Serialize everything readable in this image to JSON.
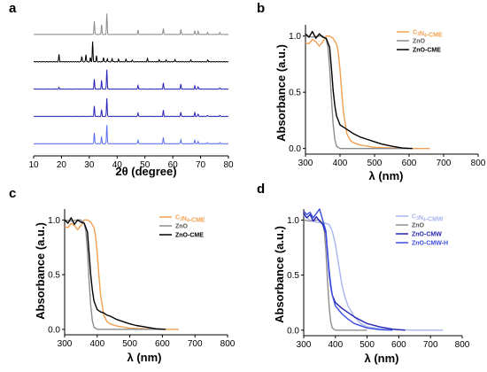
{
  "colors": {
    "orange": "#f0a050",
    "gray": "#8c8c8c",
    "black": "#000000",
    "blue_gray": "#8f8f8f",
    "blue_dark": "#2424b8",
    "blue_light": "#5a6ff0",
    "blue_pale": "#a8b4ec"
  },
  "chart_data": [
    {
      "id": "a",
      "type": "line",
      "panel_label": "a",
      "xlabel": "2θ (degree)",
      "ylabel": "",
      "xlim": [
        10,
        80
      ],
      "xticks": [
        10,
        20,
        30,
        40,
        50,
        60,
        70,
        80
      ],
      "offset_baselines": [
        2.0,
        1.55,
        1.1,
        0.65,
        0.2
      ],
      "series": [
        {
          "color": "#8c8c8c",
          "baseline": 2.0,
          "peaks": [
            [
              31.8,
              0.22
            ],
            [
              34.4,
              0.16
            ],
            [
              36.3,
              0.34
            ],
            [
              47.5,
              0.07
            ],
            [
              56.6,
              0.1
            ],
            [
              62.9,
              0.08
            ],
            [
              67.9,
              0.06
            ],
            [
              69.1,
              0.05
            ],
            [
              72.5,
              0.03
            ],
            [
              76.9,
              0.03
            ]
          ]
        },
        {
          "color": "#000000",
          "baseline": 1.55,
          "peaks": [
            [
              19.1,
              0.12
            ],
            [
              27.3,
              0.09
            ],
            [
              28.8,
              0.12
            ],
            [
              30.4,
              0.07
            ],
            [
              31.2,
              0.33
            ],
            [
              32.6,
              0.1
            ],
            [
              35.1,
              0.07
            ],
            [
              36.5,
              0.05
            ],
            [
              38.2,
              0.05
            ],
            [
              40.5,
              0.04
            ],
            [
              43.2,
              0.04
            ],
            [
              45.4,
              0.03
            ],
            [
              50.9,
              0.05
            ],
            [
              55.1,
              0.03
            ],
            [
              57.6,
              0.03
            ],
            [
              60.8,
              0.04
            ],
            [
              66.5,
              0.03
            ],
            [
              72.6,
              0.03
            ]
          ]
        },
        {
          "color": "#2424b8",
          "baseline": 1.1,
          "peaks": [
            [
              19.1,
              0.03
            ],
            [
              31.8,
              0.16
            ],
            [
              34.4,
              0.14
            ],
            [
              36.3,
              0.32
            ],
            [
              47.5,
              0.06
            ],
            [
              56.6,
              0.1
            ],
            [
              62.9,
              0.08
            ],
            [
              67.9,
              0.05
            ],
            [
              69.1,
              0.04
            ],
            [
              76.9,
              0.02
            ]
          ]
        },
        {
          "color": "#2424b8",
          "baseline": 0.65,
          "peaks": [
            [
              31.8,
              0.17
            ],
            [
              34.4,
              0.11
            ],
            [
              36.3,
              0.3
            ],
            [
              47.5,
              0.06
            ],
            [
              56.6,
              0.1
            ],
            [
              62.9,
              0.07
            ],
            [
              67.9,
              0.06
            ],
            [
              69.1,
              0.04
            ],
            [
              72.5,
              0.02
            ],
            [
              76.9,
              0.02
            ]
          ]
        },
        {
          "color": "#5a6ff0",
          "baseline": 0.2,
          "peaks": [
            [
              31.8,
              0.18
            ],
            [
              34.4,
              0.12
            ],
            [
              36.3,
              0.31
            ],
            [
              47.5,
              0.06
            ],
            [
              56.6,
              0.1
            ],
            [
              62.9,
              0.07
            ],
            [
              67.9,
              0.06
            ],
            [
              69.1,
              0.04
            ],
            [
              72.5,
              0.02
            ],
            [
              76.9,
              0.02
            ]
          ]
        }
      ]
    },
    {
      "id": "b",
      "type": "line",
      "panel_label": "b",
      "xlabel": "λ (nm)",
      "ylabel": "Absorbance (a.u.)",
      "xlim": [
        300,
        800
      ],
      "ylim": [
        -0.05,
        1.1
      ],
      "xticks": [
        300,
        400,
        500,
        600,
        700,
        800
      ],
      "yticks": [
        0.0,
        0.5,
        1.0
      ],
      "series": [
        {
          "name": "C3N4-CME",
          "name_main": "C",
          "name_sub1": "3",
          "name_mid": "N",
          "name_sub2": "4",
          "name_rest": "-CME",
          "color": "#f0a050",
          "x": [
            300,
            310,
            320,
            330,
            340,
            350,
            360,
            370,
            380,
            390,
            395,
            400,
            405,
            410,
            420,
            430,
            440,
            460,
            480,
            500,
            550,
            600,
            660
          ],
          "y": [
            0.94,
            0.93,
            0.97,
            0.95,
            0.91,
            0.95,
            1.0,
            1.0,
            0.98,
            0.93,
            0.85,
            0.7,
            0.5,
            0.32,
            0.13,
            0.07,
            0.05,
            0.03,
            0.02,
            0.01,
            0.005,
            0.0,
            0.0
          ]
        },
        {
          "name": "ZnO",
          "color": "#8c8c8c",
          "x": [
            300,
            320,
            340,
            350,
            360,
            365,
            370,
            375,
            380,
            385,
            390,
            400,
            420,
            450,
            500,
            600
          ],
          "y": [
            1.0,
            0.99,
            1.0,
            1.0,
            0.97,
            0.9,
            0.72,
            0.45,
            0.22,
            0.08,
            0.02,
            0.0,
            0.0,
            0.0,
            0.0,
            0.0
          ]
        },
        {
          "name": "ZnO-CME",
          "color": "#000000",
          "x": [
            300,
            310,
            320,
            330,
            340,
            350,
            360,
            370,
            375,
            380,
            385,
            390,
            400,
            410,
            420,
            430,
            440,
            460,
            480,
            500,
            520,
            550,
            580,
            610
          ],
          "y": [
            1.02,
            0.99,
            1.04,
            0.98,
            1.02,
            0.99,
            0.98,
            0.9,
            0.72,
            0.52,
            0.38,
            0.29,
            0.21,
            0.19,
            0.17,
            0.15,
            0.13,
            0.1,
            0.08,
            0.06,
            0.04,
            0.02,
            0.005,
            0.0
          ]
        }
      ]
    },
    {
      "id": "c",
      "type": "line",
      "panel_label": "c",
      "xlabel": "λ (nm)",
      "ylabel": "Absorbance (a.u.)",
      "xlim": [
        300,
        800
      ],
      "ylim": [
        -0.05,
        1.1
      ],
      "xticks": [
        300,
        400,
        500,
        600,
        700,
        800
      ],
      "yticks": [
        0.0,
        0.5,
        1.0
      ],
      "series": [
        {
          "name": "C3N4-CME",
          "name_main": "C",
          "name_sub1": "3",
          "name_mid": "N",
          "name_sub2": "4",
          "name_rest": "-CME",
          "color": "#f0a050",
          "x": [
            300,
            310,
            320,
            330,
            340,
            350,
            360,
            370,
            380,
            390,
            395,
            400,
            405,
            410,
            420,
            430,
            440,
            460,
            480,
            500,
            550,
            600,
            650
          ],
          "y": [
            0.94,
            0.93,
            0.97,
            0.95,
            0.91,
            0.95,
            1.0,
            1.0,
            0.98,
            0.93,
            0.85,
            0.7,
            0.5,
            0.32,
            0.13,
            0.07,
            0.05,
            0.03,
            0.02,
            0.01,
            0.005,
            0.0,
            0.0
          ]
        },
        {
          "name": "ZnO",
          "color": "#8c8c8c",
          "x": [
            300,
            320,
            340,
            350,
            360,
            365,
            370,
            375,
            380,
            385,
            390,
            400,
            420,
            450,
            500,
            600
          ],
          "y": [
            1.0,
            0.99,
            1.0,
            1.0,
            0.97,
            0.9,
            0.72,
            0.45,
            0.22,
            0.08,
            0.02,
            0.0,
            0.0,
            0.0,
            0.0,
            0.0
          ]
        },
        {
          "name": "ZnO-CME",
          "color": "#000000",
          "x": [
            300,
            310,
            320,
            330,
            340,
            350,
            360,
            370,
            375,
            380,
            385,
            390,
            400,
            410,
            420,
            430,
            440,
            460,
            480,
            500,
            520,
            550,
            580,
            610
          ],
          "y": [
            1.0,
            0.97,
            1.02,
            0.96,
            1.0,
            0.98,
            0.97,
            0.89,
            0.7,
            0.5,
            0.36,
            0.26,
            0.18,
            0.16,
            0.15,
            0.13,
            0.12,
            0.09,
            0.07,
            0.05,
            0.035,
            0.02,
            0.005,
            0.0
          ]
        }
      ]
    },
    {
      "id": "d",
      "type": "line",
      "panel_label": "d",
      "xlabel": "λ (nm)",
      "ylabel": "Absorbance (a.u.)",
      "xlim": [
        300,
        800
      ],
      "ylim": [
        -0.05,
        1.1
      ],
      "xticks": [
        300,
        400,
        500,
        600,
        700,
        800
      ],
      "yticks": [
        0.0,
        0.5,
        1.0
      ],
      "series": [
        {
          "name": "C3N4-CMW",
          "name_main": "C",
          "name_sub1": "3",
          "name_mid": "N",
          "name_sub2": "4",
          "name_rest": "-CMW",
          "color": "#a8b4ec",
          "x": [
            300,
            320,
            340,
            360,
            380,
            390,
            400,
            410,
            420,
            430,
            440,
            460,
            480,
            500,
            550,
            600,
            650,
            700,
            740
          ],
          "y": [
            1.04,
            1.0,
            0.98,
            0.98,
            0.96,
            0.9,
            0.78,
            0.6,
            0.42,
            0.3,
            0.22,
            0.12,
            0.06,
            0.03,
            0.01,
            0.005,
            0.0,
            0.0,
            0.0
          ]
        },
        {
          "name": "ZnO",
          "color": "#8f8f8f",
          "x": [
            300,
            320,
            340,
            350,
            360,
            365,
            370,
            375,
            380,
            385,
            390,
            400,
            420,
            450,
            500
          ],
          "y": [
            1.0,
            0.99,
            1.0,
            1.0,
            0.97,
            0.9,
            0.72,
            0.45,
            0.22,
            0.08,
            0.02,
            0.0,
            0.0,
            0.0,
            0.0
          ]
        },
        {
          "name": "ZnO-CMW",
          "color": "#2424b8",
          "x": [
            300,
            310,
            320,
            330,
            340,
            350,
            360,
            370,
            375,
            380,
            385,
            390,
            400,
            420,
            440,
            460,
            480,
            500,
            540,
            580,
            620
          ],
          "y": [
            1.06,
            1.02,
            1.05,
            0.99,
            1.03,
            0.99,
            0.96,
            0.88,
            0.7,
            0.52,
            0.4,
            0.32,
            0.25,
            0.2,
            0.16,
            0.12,
            0.09,
            0.06,
            0.03,
            0.01,
            0.0
          ]
        },
        {
          "name": "ZnO-CMW-H",
          "color": "#3a4ee0",
          "x": [
            300,
            310,
            320,
            330,
            340,
            350,
            360,
            370,
            375,
            380,
            385,
            390,
            400,
            420,
            440,
            460,
            480,
            500,
            540,
            580
          ],
          "y": [
            1.08,
            1.05,
            1.07,
            1.02,
            1.06,
            1.1,
            1.0,
            0.9,
            0.72,
            0.55,
            0.42,
            0.32,
            0.22,
            0.15,
            0.1,
            0.06,
            0.04,
            0.02,
            0.005,
            0.0
          ]
        }
      ]
    }
  ]
}
